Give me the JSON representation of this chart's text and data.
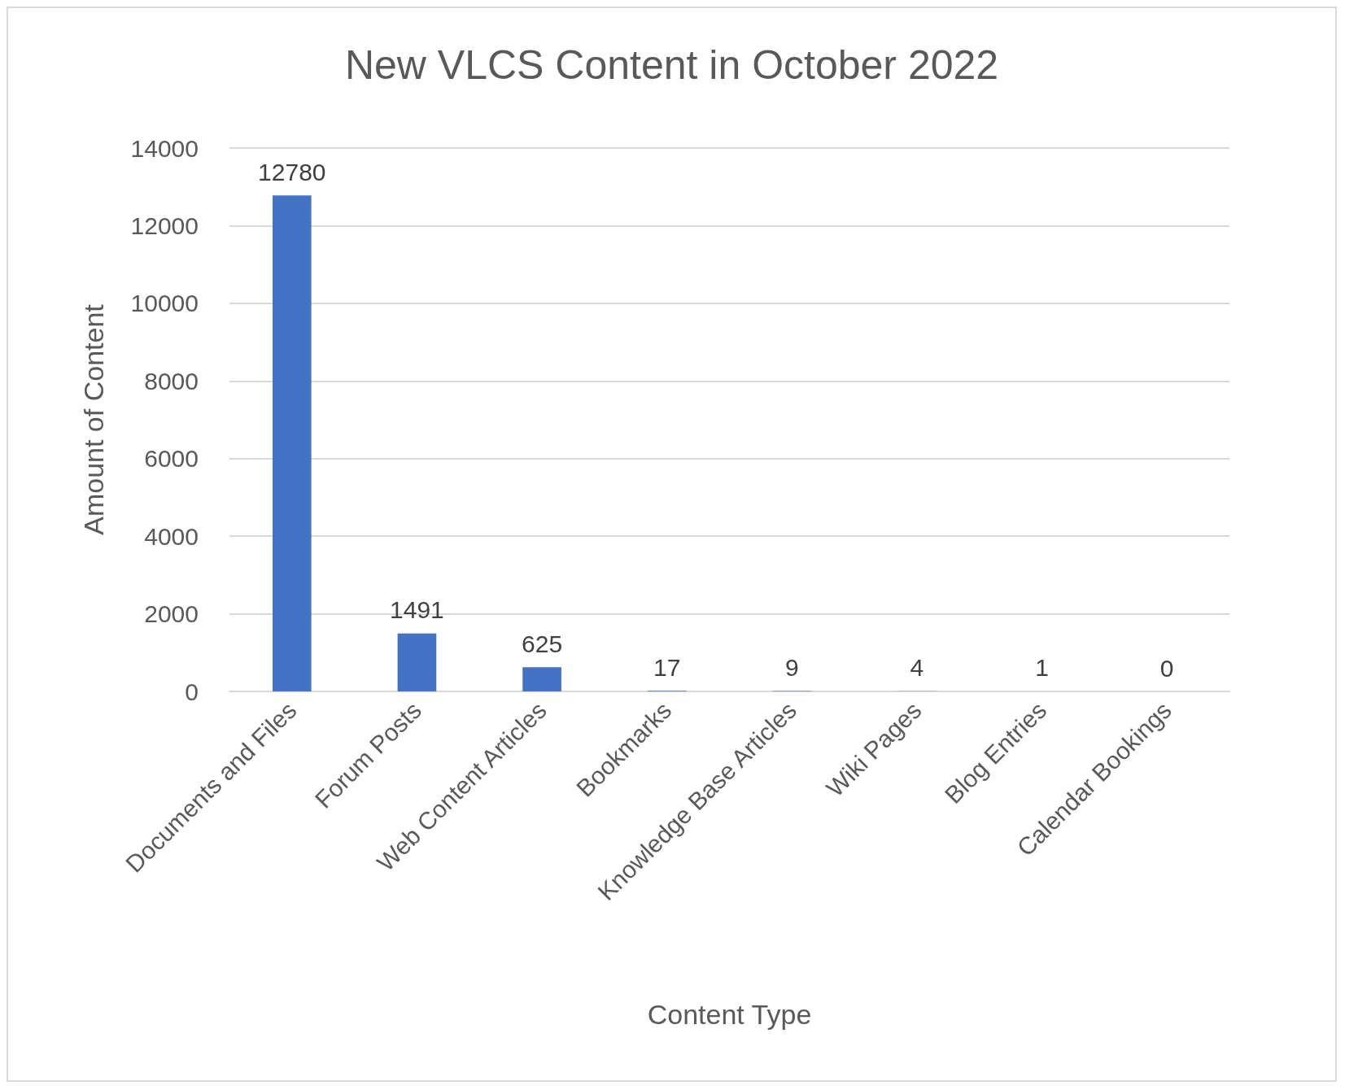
{
  "chart_data": {
    "type": "bar",
    "title": "New VLCS Content in October 2022",
    "xlabel": "Content Type",
    "ylabel": "Amount of Content",
    "categories": [
      "Documents and Files",
      "Forum Posts",
      "Web Content Articles",
      "Bookmarks",
      "Knowledge Base Articles",
      "Wiki Pages",
      "Blog Entries",
      "Calendar Bookings"
    ],
    "values": [
      12780,
      1491,
      625,
      17,
      9,
      4,
      1,
      0
    ],
    "color": "#4472c4",
    "ylim": [
      0,
      14000
    ],
    "yticks": [
      0,
      2000,
      4000,
      6000,
      8000,
      10000,
      12000,
      14000
    ],
    "grid": "y",
    "data_labels": true
  }
}
